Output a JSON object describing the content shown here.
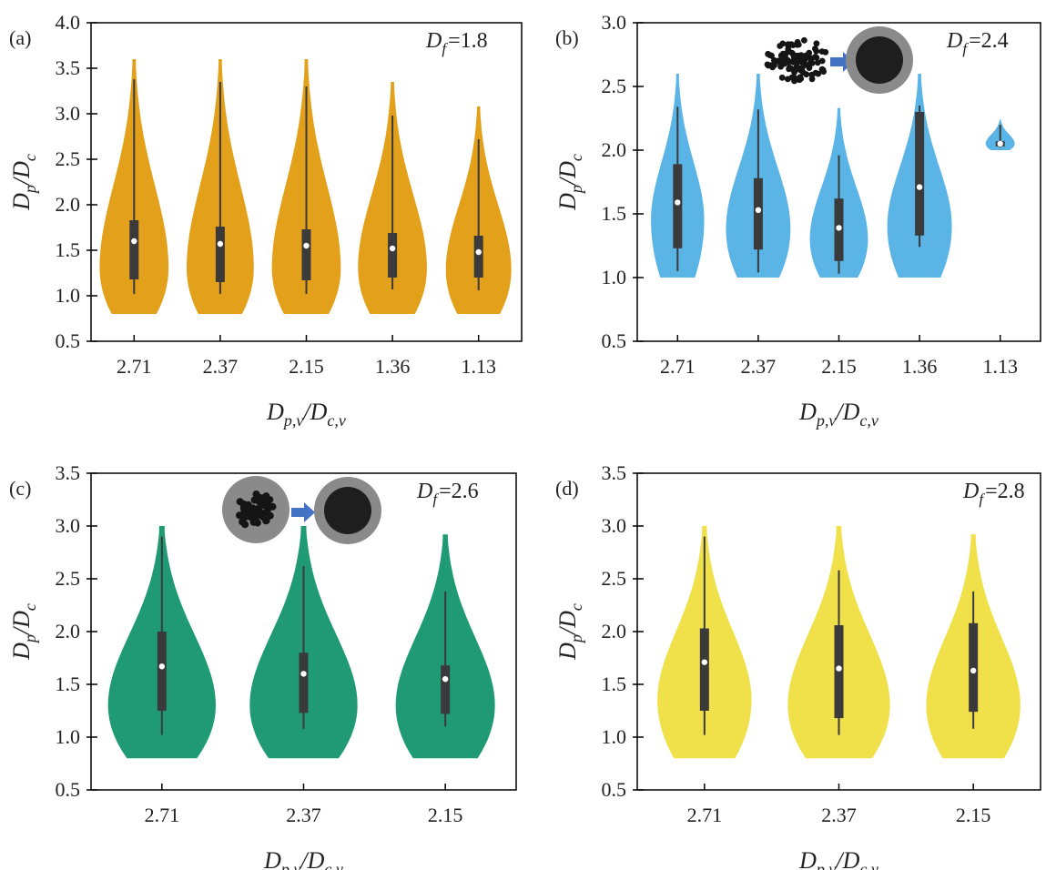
{
  "figure": {
    "panels": [
      {
        "label": "(a)",
        "df_symbol": "D",
        "df_sub": "f",
        "df_value": "=1.8"
      },
      {
        "label": "(b)",
        "df_symbol": "D",
        "df_sub": "f",
        "df_value": "=2.4"
      },
      {
        "label": "(c)",
        "df_symbol": "D",
        "df_sub": "f",
        "df_value": "=2.6"
      },
      {
        "label": "(d)",
        "df_symbol": "D",
        "df_sub": "f",
        "df_value": "=2.8"
      }
    ],
    "xlabel": {
      "main1": "D",
      "sub1": "p,v",
      "slash": "/",
      "main2": "D",
      "sub2": "c,v"
    },
    "ylabel": {
      "main1": "D",
      "sub1": "p",
      "slash": "/",
      "main2": "D",
      "sub2": "c"
    },
    "insets": [
      {
        "panel": "(b)",
        "from": "fractal-aggregate-icon",
        "arrow": "arrow-icon",
        "to": "coated-sphere-icon"
      },
      {
        "panel": "(c)",
        "from": "embedded-aggregate-icon",
        "arrow": "arrow-icon",
        "to": "coated-sphere-icon"
      }
    ]
  },
  "chart_data": [
    {
      "type": "violin",
      "panel": "(a)",
      "color": "#e3a11b",
      "categories": [
        "2.71",
        "2.37",
        "2.15",
        "1.36",
        "1.13"
      ],
      "ylim": [
        0.5,
        4.0
      ],
      "yticks": [
        "0.5",
        "1.0",
        "1.5",
        "2.0",
        "2.5",
        "3.0",
        "3.5",
        "4.0"
      ],
      "violins": [
        {
          "min": 0.8,
          "max": 3.6,
          "q1": 1.18,
          "median": 1.6,
          "q3": 1.83,
          "wlo": 1.02,
          "whi": 3.38,
          "mode": 1.3,
          "width": 0.4
        },
        {
          "min": 0.8,
          "max": 3.6,
          "q1": 1.15,
          "median": 1.57,
          "q3": 1.76,
          "wlo": 1.02,
          "whi": 3.35,
          "mode": 1.3,
          "width": 0.39
        },
        {
          "min": 0.8,
          "max": 3.6,
          "q1": 1.17,
          "median": 1.55,
          "q3": 1.73,
          "wlo": 1.02,
          "whi": 3.3,
          "mode": 1.3,
          "width": 0.4
        },
        {
          "min": 0.8,
          "max": 3.35,
          "q1": 1.2,
          "median": 1.52,
          "q3": 1.69,
          "wlo": 1.07,
          "whi": 2.98,
          "mode": 1.3,
          "width": 0.4
        },
        {
          "min": 0.8,
          "max": 3.08,
          "q1": 1.2,
          "median": 1.48,
          "q3": 1.66,
          "wlo": 1.06,
          "whi": 2.72,
          "mode": 1.28,
          "width": 0.38
        }
      ]
    },
    {
      "type": "violin",
      "panel": "(b)",
      "color": "#5ab4e6",
      "categories": [
        "2.71",
        "2.37",
        "2.15",
        "1.36",
        "1.13"
      ],
      "ylim": [
        0.5,
        3.0
      ],
      "yticks": [
        "0.5",
        "1.0",
        "1.5",
        "2.0",
        "2.5",
        "3.0"
      ],
      "violins": [
        {
          "min": 1.0,
          "max": 2.6,
          "q1": 1.23,
          "median": 1.59,
          "q3": 1.89,
          "wlo": 1.05,
          "whi": 2.34,
          "mode": 1.45,
          "width": 0.33
        },
        {
          "min": 1.0,
          "max": 2.6,
          "q1": 1.22,
          "median": 1.53,
          "q3": 1.78,
          "wlo": 1.04,
          "whi": 2.32,
          "mode": 1.38,
          "width": 0.4
        },
        {
          "min": 1.0,
          "max": 2.33,
          "q1": 1.13,
          "median": 1.39,
          "q3": 1.62,
          "wlo": 1.03,
          "whi": 1.96,
          "mode": 1.3,
          "width": 0.36
        },
        {
          "min": 1.0,
          "max": 2.6,
          "q1": 1.33,
          "median": 1.71,
          "q3": 2.3,
          "wlo": 1.24,
          "whi": 2.35,
          "mode": 1.4,
          "width": 0.4
        },
        {
          "min": 2.0,
          "max": 2.24,
          "q1": 2.03,
          "median": 2.05,
          "q3": 2.07,
          "wlo": 2.02,
          "whi": 2.2,
          "mode": 2.05,
          "width": 0.18
        }
      ]
    },
    {
      "type": "violin",
      "panel": "(c)",
      "color": "#1f9a73",
      "categories": [
        "2.71",
        "2.37",
        "2.15"
      ],
      "ylim": [
        0.5,
        3.5
      ],
      "yticks": [
        "0.5",
        "1.0",
        "1.5",
        "2.0",
        "2.5",
        "3.0",
        "3.5"
      ],
      "violins": [
        {
          "min": 0.8,
          "max": 3.0,
          "q1": 1.25,
          "median": 1.67,
          "q3": 2.0,
          "wlo": 1.02,
          "whi": 2.9,
          "mode": 1.3,
          "width": 0.38
        },
        {
          "min": 0.8,
          "max": 3.0,
          "q1": 1.23,
          "median": 1.6,
          "q3": 1.8,
          "wlo": 1.08,
          "whi": 2.62,
          "mode": 1.3,
          "width": 0.38
        },
        {
          "min": 0.8,
          "max": 2.92,
          "q1": 1.22,
          "median": 1.55,
          "q3": 1.68,
          "wlo": 1.1,
          "whi": 2.38,
          "mode": 1.3,
          "width": 0.35
        }
      ]
    },
    {
      "type": "violin",
      "panel": "(d)",
      "color": "#f0e14a",
      "categories": [
        "2.71",
        "2.37",
        "2.15"
      ],
      "ylim": [
        0.5,
        3.5
      ],
      "yticks": [
        "0.5",
        "1.0",
        "1.5",
        "2.0",
        "2.5",
        "3.0",
        "3.5"
      ],
      "violins": [
        {
          "min": 0.8,
          "max": 3.0,
          "q1": 1.25,
          "median": 1.71,
          "q3": 2.03,
          "wlo": 1.02,
          "whi": 2.9,
          "mode": 1.35,
          "width": 0.35
        },
        {
          "min": 0.8,
          "max": 3.0,
          "q1": 1.18,
          "median": 1.65,
          "q3": 2.06,
          "wlo": 1.02,
          "whi": 2.58,
          "mode": 1.3,
          "width": 0.38
        },
        {
          "min": 0.8,
          "max": 2.92,
          "q1": 1.24,
          "median": 1.63,
          "q3": 2.08,
          "wlo": 1.08,
          "whi": 2.38,
          "mode": 1.3,
          "width": 0.35
        }
      ]
    }
  ]
}
